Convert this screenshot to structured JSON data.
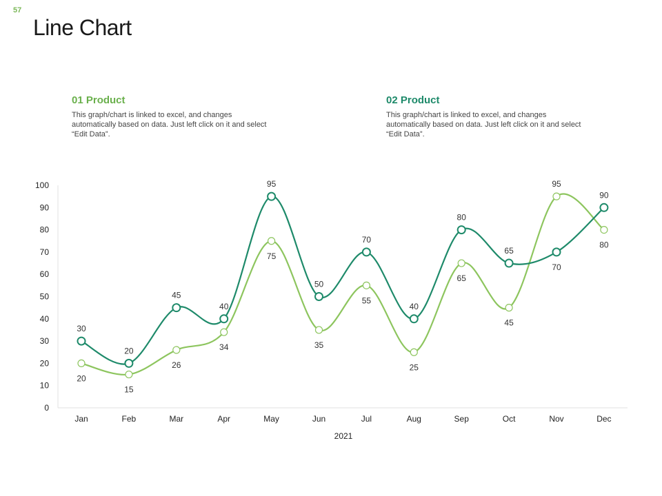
{
  "slide_number": "57",
  "title": "Line Chart",
  "products": [
    {
      "name": "01 Product",
      "description": "This graph/chart is linked to excel, and changes automatically based on data. Just left click on it and select “Edit Data”."
    },
    {
      "name": "02 Product",
      "description": "This graph/chart is linked to excel, and changes automatically based on data. Just left click on it and select “Edit Data”."
    }
  ],
  "colors": {
    "series1": "#8dc55e",
    "series2": "#1e8a6a"
  },
  "chart_data": {
    "type": "line",
    "title": "Line Chart",
    "xlabel": "2021",
    "ylabel": "",
    "ylim": [
      0,
      100
    ],
    "yticks": [
      0,
      10,
      20,
      30,
      40,
      50,
      60,
      70,
      80,
      90,
      100
    ],
    "categories": [
      "Jan",
      "Feb",
      "Mar",
      "Apr",
      "May",
      "Jun",
      "Jul",
      "Aug",
      "Sep",
      "Oct",
      "Nov",
      "Dec"
    ],
    "series": [
      {
        "name": "01 Product",
        "values": [
          20,
          15,
          26,
          34,
          75,
          35,
          55,
          25,
          65,
          45,
          95,
          80
        ]
      },
      {
        "name": "02 Product",
        "values": [
          30,
          20,
          45,
          40,
          95,
          50,
          70,
          40,
          80,
          65,
          70,
          90
        ]
      }
    ]
  }
}
